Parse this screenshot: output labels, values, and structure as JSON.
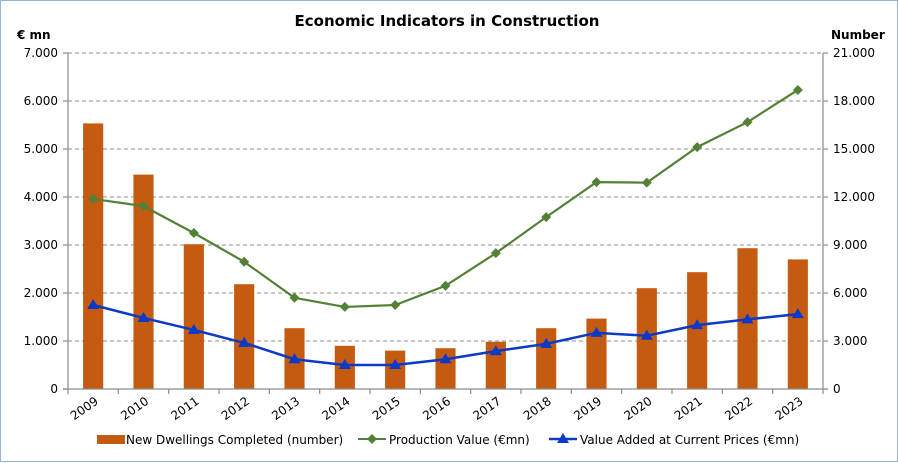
{
  "chart_data": {
    "type": "bar",
    "title": "Economic Indicators in Construction",
    "ylabel_left": "€ mn",
    "ylabel_right": "Number",
    "xlabel": "",
    "categories": [
      "2009",
      "2010",
      "2011",
      "2012",
      "2013",
      "2014",
      "2015",
      "2016",
      "2017",
      "2018",
      "2019",
      "2020",
      "2021",
      "2022",
      "2023"
    ],
    "ylim_left": [
      0,
      7000
    ],
    "ylim_right": [
      0,
      21000
    ],
    "yticks_left": [
      "0",
      "1.000",
      "2.000",
      "3.000",
      "4.000",
      "5.000",
      "6.000",
      "7.000"
    ],
    "yticks_right": [
      "0",
      "3.000",
      "6.000",
      "9.000",
      "12.000",
      "15.000",
      "18.000",
      "21.000"
    ],
    "grid": true,
    "legend_position": "bottom",
    "series": [
      {
        "name": "New Dwellings Completed (number)",
        "kind": "bar",
        "axis": "right",
        "color": "#c55a11",
        "values": [
          16600,
          13400,
          9050,
          6550,
          3800,
          2700,
          2400,
          2550,
          2950,
          3800,
          4400,
          6300,
          7300,
          8800,
          8100
        ]
      },
      {
        "name": "Production Value (€mn)",
        "kind": "line",
        "marker": "diamond",
        "axis": "left",
        "color": "#538135",
        "values": [
          3960,
          3810,
          3250,
          2650,
          1900,
          1710,
          1750,
          2150,
          2830,
          3580,
          4310,
          4300,
          5040,
          5560,
          6230
        ]
      },
      {
        "name": "Value Added at Current Prices (€mn)",
        "kind": "line",
        "marker": "triangle",
        "axis": "left",
        "color": "#0b39c8",
        "values": [
          1750,
          1480,
          1230,
          960,
          620,
          500,
          500,
          620,
          790,
          940,
          1170,
          1110,
          1330,
          1450,
          1560
        ]
      }
    ]
  }
}
